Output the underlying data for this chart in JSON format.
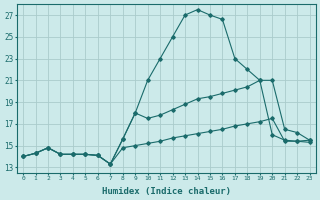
{
  "xlabel": "Humidex (Indice chaleur)",
  "bg_color": "#cceaea",
  "grid_color": "#aacccc",
  "line_color": "#1a6b6b",
  "xlim": [
    -0.5,
    23.5
  ],
  "ylim": [
    12.5,
    28.0
  ],
  "xticks": [
    0,
    1,
    2,
    3,
    4,
    5,
    6,
    7,
    8,
    9,
    10,
    11,
    12,
    13,
    14,
    15,
    16,
    17,
    18,
    19,
    20,
    21,
    22,
    23
  ],
  "yticks": [
    13,
    15,
    17,
    19,
    21,
    23,
    25,
    27
  ],
  "line_peak_x": [
    0,
    1,
    2,
    3,
    4,
    5,
    6,
    7,
    8,
    9,
    10,
    11,
    12,
    13,
    14,
    15,
    16,
    17,
    18,
    19,
    20,
    21,
    22,
    23
  ],
  "line_peak_y": [
    14.0,
    14.3,
    14.8,
    14.2,
    14.2,
    14.2,
    14.1,
    13.3,
    15.6,
    18.0,
    21.0,
    23.0,
    25.0,
    27.0,
    27.5,
    27.0,
    26.6,
    23.0,
    22.0,
    21.0,
    16.0,
    15.5,
    15.4,
    15.5
  ],
  "line_mid_x": [
    0,
    1,
    2,
    3,
    4,
    5,
    6,
    7,
    8,
    9,
    10,
    11,
    12,
    13,
    14,
    15,
    16,
    17,
    18,
    19,
    20,
    21,
    22,
    23
  ],
  "line_mid_y": [
    14.0,
    14.3,
    14.8,
    14.2,
    14.2,
    14.2,
    14.1,
    13.3,
    15.6,
    18.0,
    17.5,
    17.8,
    18.3,
    18.8,
    19.3,
    19.5,
    19.8,
    20.1,
    20.4,
    21.0,
    21.0,
    16.5,
    16.2,
    15.5
  ],
  "line_low_x": [
    0,
    1,
    2,
    3,
    4,
    5,
    6,
    7,
    8,
    9,
    10,
    11,
    12,
    13,
    14,
    15,
    16,
    17,
    18,
    19,
    20,
    21,
    22,
    23
  ],
  "line_low_y": [
    14.0,
    14.3,
    14.8,
    14.2,
    14.2,
    14.2,
    14.1,
    13.3,
    14.8,
    15.0,
    15.2,
    15.4,
    15.7,
    15.9,
    16.1,
    16.3,
    16.5,
    16.8,
    17.0,
    17.2,
    17.5,
    15.4,
    15.4,
    15.3
  ]
}
